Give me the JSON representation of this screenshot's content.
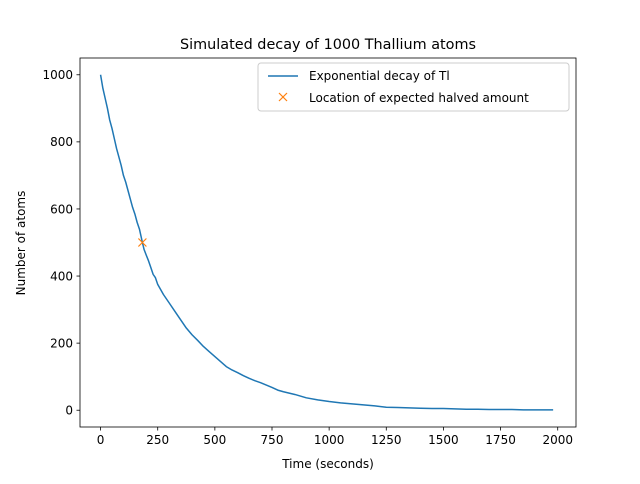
{
  "chart_data": {
    "type": "line",
    "title": "Simulated decay of 1000 Thallium atoms",
    "xlabel": "Time (seconds)",
    "ylabel": "Number of atoms",
    "xlim": [
      -90,
      2080
    ],
    "ylim": [
      -50,
      1050
    ],
    "xticks": [
      0,
      250,
      500,
      750,
      1000,
      1250,
      1500,
      1750,
      2000
    ],
    "yticks": [
      0,
      200,
      400,
      600,
      800,
      1000
    ],
    "grid": false,
    "legend_position": "top-right",
    "series": [
      {
        "name": "Exponential decay of Tl",
        "kind": "line",
        "color": "#1f77b4",
        "x": [
          0,
          10,
          20,
          30,
          40,
          50,
          60,
          70,
          80,
          90,
          100,
          110,
          120,
          130,
          140,
          150,
          160,
          170,
          183,
          190,
          200,
          210,
          220,
          230,
          240,
          250,
          275,
          300,
          325,
          350,
          375,
          400,
          425,
          450,
          475,
          500,
          525,
          550,
          575,
          600,
          625,
          650,
          675,
          700,
          725,
          750,
          775,
          800,
          850,
          900,
          950,
          1000,
          1050,
          1100,
          1150,
          1200,
          1250,
          1300,
          1350,
          1400,
          1450,
          1500,
          1550,
          1600,
          1650,
          1700,
          1750,
          1800,
          1850,
          1900,
          1950,
          1980
        ],
        "y": [
          1000,
          960,
          930,
          900,
          865,
          840,
          810,
          780,
          755,
          730,
          700,
          680,
          655,
          630,
          605,
          585,
          560,
          540,
          500,
          480,
          462,
          445,
          425,
          405,
          395,
          375,
          345,
          320,
          295,
          270,
          245,
          225,
          208,
          190,
          175,
          160,
          145,
          130,
          120,
          112,
          103,
          95,
          88,
          82,
          75,
          68,
          60,
          55,
          47,
          37,
          31,
          26,
          22,
          19,
          16,
          13,
          9,
          8,
          7,
          6,
          5,
          5,
          4,
          3,
          3,
          2,
          2,
          2,
          1,
          1,
          1,
          1
        ]
      },
      {
        "name": "Location of expected halved amount",
        "kind": "marker",
        "marker": "x",
        "color": "#ff7f0e",
        "x": [
          183
        ],
        "y": [
          500
        ]
      }
    ]
  }
}
